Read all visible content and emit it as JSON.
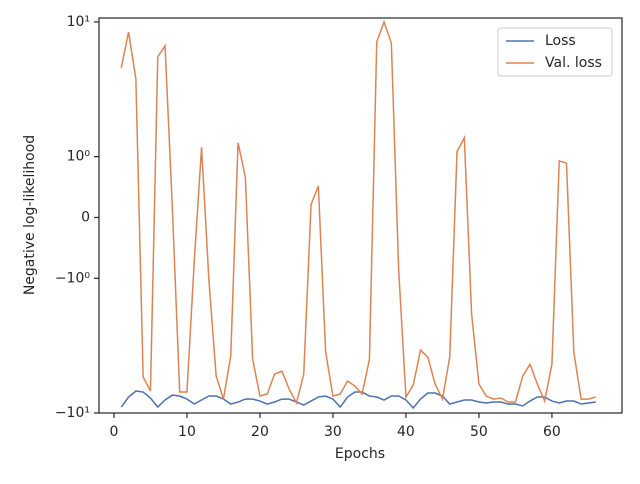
{
  "chart_data": {
    "type": "line",
    "xlabel": "Epochs",
    "ylabel": "Negative log-likelihood",
    "x": [
      1,
      2,
      3,
      4,
      5,
      6,
      7,
      8,
      9,
      10,
      11,
      12,
      13,
      14,
      15,
      16,
      17,
      18,
      19,
      20,
      21,
      22,
      23,
      24,
      25,
      26,
      27,
      28,
      29,
      30,
      31,
      32,
      33,
      34,
      35,
      36,
      37,
      38,
      39,
      40,
      41,
      42,
      43,
      44,
      45,
      46,
      47,
      48,
      49,
      50,
      51,
      52,
      53,
      54,
      55,
      56,
      57,
      58,
      59,
      60,
      61,
      62,
      63,
      64,
      65,
      66
    ],
    "series": [
      {
        "name": "Loss",
        "color": "#4c72b0",
        "values": [
          -9.03,
          -7.61,
          -6.87,
          -6.99,
          -7.74,
          -9.03,
          -8.01,
          -7.36,
          -7.48,
          -7.88,
          -8.58,
          -8.01,
          -7.48,
          -7.48,
          -7.88,
          -8.58,
          -8.29,
          -7.88,
          -7.88,
          -8.15,
          -8.58,
          -8.29,
          -7.88,
          -7.88,
          -8.29,
          -8.73,
          -8.15,
          -7.61,
          -7.48,
          -7.88,
          -9.03,
          -7.61,
          -6.99,
          -6.99,
          -7.48,
          -7.61,
          -8.01,
          -7.48,
          -7.48,
          -8.01,
          -9.18,
          -7.88,
          -7.11,
          -7.11,
          -7.48,
          -8.58,
          -8.29,
          -8.01,
          -8.01,
          -8.29,
          -8.43,
          -8.29,
          -8.29,
          -8.58,
          -8.58,
          -8.87,
          -8.15,
          -7.61,
          -7.61,
          -8.15,
          -8.43,
          -8.15,
          -8.15,
          -8.58,
          -8.43,
          -8.29
        ]
      },
      {
        "name": "Val. loss",
        "color": "#dd8452",
        "values": [
          4.56,
          8.43,
          3.78,
          -5.41,
          -6.87,
          5.51,
          6.64,
          0.16,
          -6.99,
          -6.99,
          -0.72,
          1.17,
          -1.02,
          -5.32,
          -7.88,
          -3.78,
          1.27,
          0.66,
          -3.98,
          -7.48,
          -7.23,
          -5.14,
          -4.89,
          -6.64,
          -8.43,
          -5.14,
          0.21,
          0.52,
          -3.53,
          -7.48,
          -7.23,
          -5.79,
          -6.31,
          -7.23,
          -3.98,
          7.11,
          10,
          6.99,
          -0.85,
          -7.61,
          -6.2,
          -3.41,
          -3.85,
          -6.1,
          -7.88,
          -3.85,
          1.09,
          1.38,
          -1.85,
          -6.1,
          -7.48,
          -7.88,
          -7.74,
          -8.29,
          -8.29,
          -5.32,
          -4.34,
          -6.1,
          -8.15,
          -4.34,
          0.93,
          0.89,
          -3.53,
          -7.88,
          -7.88,
          -7.61
        ]
      }
    ],
    "xlim": [
      -2.05,
      69.6
    ],
    "xticks": [
      0,
      10,
      20,
      30,
      40,
      50,
      60
    ],
    "ylim": [
      -10,
      10.7
    ],
    "yscale": "symlog",
    "linthresh": 1,
    "yticks": [
      {
        "value": -10,
        "label": "−10¹"
      },
      {
        "value": -1,
        "label": "−10⁰"
      },
      0,
      {
        "value": 1,
        "label": "10⁰"
      },
      {
        "value": 10,
        "label": "10¹"
      }
    ],
    "legend": "upper right"
  }
}
